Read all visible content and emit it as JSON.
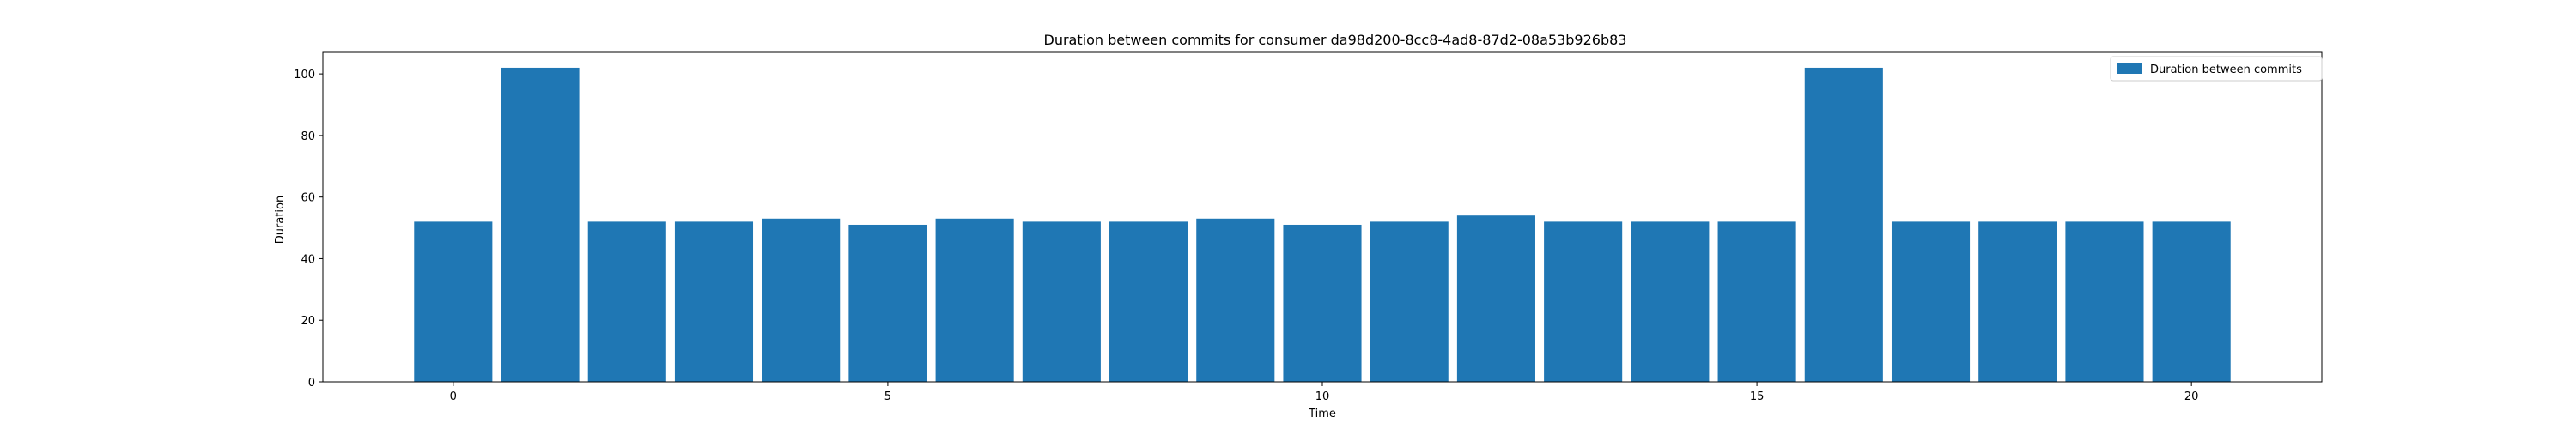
{
  "colors": {
    "bar": "#1f77b4",
    "axes": "#000000",
    "background": "#ffffff",
    "legend_border": "#cccccc"
  },
  "chart_data": {
    "type": "bar",
    "title": "Duration between commits for consumer da98d200-8cc8-4ad8-87d2-08a53b926b83",
    "xlabel": "Time",
    "ylabel": "Duration",
    "series": [
      {
        "name": "Duration between commits",
        "x": [
          0,
          1,
          2,
          3,
          4,
          5,
          6,
          7,
          8,
          9,
          10,
          11,
          12,
          13,
          14,
          15,
          16,
          17,
          18,
          19,
          20
        ],
        "values": [
          52,
          102,
          52,
          52,
          53,
          51,
          53,
          52,
          52,
          53,
          51,
          52,
          54,
          52,
          52,
          52,
          102,
          52,
          52,
          52,
          52
        ]
      }
    ],
    "xticks": [
      0,
      5,
      10,
      15,
      20
    ],
    "yticks": [
      0,
      20,
      40,
      60,
      80,
      100
    ],
    "xlim": [
      -1.5,
      21.5
    ],
    "ylim": [
      0,
      107
    ],
    "grid": false,
    "legend_position": "top-right"
  }
}
